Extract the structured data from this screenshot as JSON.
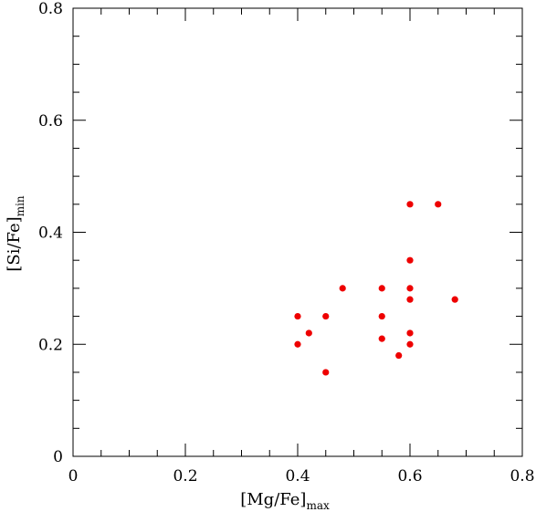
{
  "chart_data": {
    "type": "scatter",
    "title": "",
    "xlabel": {
      "main": "[Mg/Fe]",
      "sub": "max"
    },
    "ylabel": {
      "main": "[Si/Fe]",
      "sub": "min"
    },
    "xlim": [
      0,
      0.8
    ],
    "ylim": [
      0,
      0.8
    ],
    "x_ticks": [
      0,
      0.2,
      0.4,
      0.6,
      0.8
    ],
    "y_ticks": [
      0,
      0.2,
      0.4,
      0.6,
      0.8
    ],
    "x_tick_labels": [
      "0",
      "0.2",
      "0.4",
      "0.6",
      "0.8"
    ],
    "y_tick_labels": [
      "0",
      "0.2",
      "0.4",
      "0.6",
      "0.8"
    ],
    "minor_step": 0.05,
    "grid": false,
    "marker_color": "#ee0000",
    "series": [
      {
        "points": [
          {
            "x": 0.4,
            "y": 0.25
          },
          {
            "x": 0.4,
            "y": 0.2
          },
          {
            "x": 0.42,
            "y": 0.22
          },
          {
            "x": 0.45,
            "y": 0.25
          },
          {
            "x": 0.45,
            "y": 0.15
          },
          {
            "x": 0.48,
            "y": 0.3
          },
          {
            "x": 0.55,
            "y": 0.3
          },
          {
            "x": 0.55,
            "y": 0.25
          },
          {
            "x": 0.55,
            "y": 0.21
          },
          {
            "x": 0.58,
            "y": 0.18
          },
          {
            "x": 0.6,
            "y": 0.45
          },
          {
            "x": 0.6,
            "y": 0.35
          },
          {
            "x": 0.6,
            "y": 0.3
          },
          {
            "x": 0.6,
            "y": 0.28
          },
          {
            "x": 0.6,
            "y": 0.22
          },
          {
            "x": 0.6,
            "y": 0.2
          },
          {
            "x": 0.65,
            "y": 0.45
          },
          {
            "x": 0.68,
            "y": 0.28
          }
        ]
      }
    ]
  }
}
